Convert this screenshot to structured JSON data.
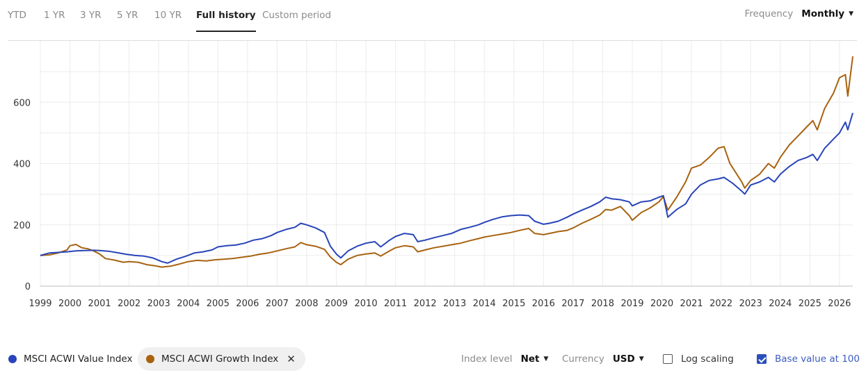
{
  "tabs": [
    {
      "label": "YTD",
      "active": false
    },
    {
      "label": "1 YR",
      "active": false
    },
    {
      "label": "3 YR",
      "active": false
    },
    {
      "label": "5 YR",
      "active": false
    },
    {
      "label": "10 YR",
      "active": false
    },
    {
      "label": "Full history",
      "active": true
    },
    {
      "label": "Custom period",
      "active": false
    }
  ],
  "frequency": {
    "label": "Frequency",
    "value": "Monthly"
  },
  "legend": [
    {
      "name": "MSCI ACWI Value Index",
      "color": "#2844b8"
    },
    {
      "name": "MSCI ACWI Growth Index",
      "color": "#a8620f"
    }
  ],
  "controls": {
    "index_level": {
      "label": "Index level",
      "value": "Net"
    },
    "currency": {
      "label": "Currency",
      "value": "USD"
    },
    "log_scaling": {
      "label": "Log scaling",
      "checked": false
    },
    "base_value": {
      "label": "Base value at 100",
      "checked": true
    }
  },
  "chart_data": {
    "type": "line",
    "title": "",
    "xlabel": "",
    "ylabel": "",
    "x_ticks": [
      "1999",
      "2000",
      "2001",
      "2002",
      "2003",
      "2004",
      "2005",
      "2006",
      "2007",
      "2008",
      "2009",
      "2010",
      "2011",
      "2012",
      "2013",
      "2014",
      "2015",
      "2016",
      "2017",
      "2018",
      "2019",
      "2020",
      "2021",
      "2022",
      "2023",
      "2024",
      "2025",
      "2026"
    ],
    "y_ticks": [
      0,
      200,
      400,
      600
    ],
    "xlim": [
      1999.0,
      2026.45
    ],
    "ylim": [
      0,
      800
    ],
    "grid": true,
    "series": [
      {
        "name": "MSCI ACWI Value Index",
        "color": "#2844b8",
        "points": [
          [
            1999.0,
            100
          ],
          [
            1999.3,
            108
          ],
          [
            1999.6,
            110
          ],
          [
            1999.9,
            112
          ],
          [
            2000.2,
            115
          ],
          [
            2000.5,
            116
          ],
          [
            2000.8,
            117
          ],
          [
            2001.0,
            116
          ],
          [
            2001.3,
            114
          ],
          [
            2001.6,
            109
          ],
          [
            2001.9,
            104
          ],
          [
            2002.2,
            100
          ],
          [
            2002.5,
            98
          ],
          [
            2002.8,
            92
          ],
          [
            2003.1,
            80
          ],
          [
            2003.3,
            75
          ],
          [
            2003.6,
            88
          ],
          [
            2003.9,
            97
          ],
          [
            2004.2,
            108
          ],
          [
            2004.5,
            112
          ],
          [
            2004.8,
            118
          ],
          [
            2005.0,
            128
          ],
          [
            2005.3,
            132
          ],
          [
            2005.6,
            134
          ],
          [
            2005.9,
            140
          ],
          [
            2006.2,
            150
          ],
          [
            2006.5,
            155
          ],
          [
            2006.8,
            165
          ],
          [
            2007.0,
            175
          ],
          [
            2007.3,
            185
          ],
          [
            2007.6,
            192
          ],
          [
            2007.8,
            205
          ],
          [
            2008.0,
            200
          ],
          [
            2008.3,
            190
          ],
          [
            2008.6,
            175
          ],
          [
            2008.8,
            130
          ],
          [
            2009.0,
            105
          ],
          [
            2009.15,
            92
          ],
          [
            2009.4,
            115
          ],
          [
            2009.7,
            130
          ],
          [
            2010.0,
            140
          ],
          [
            2010.3,
            145
          ],
          [
            2010.5,
            128
          ],
          [
            2010.8,
            150
          ],
          [
            2011.0,
            162
          ],
          [
            2011.3,
            172
          ],
          [
            2011.6,
            168
          ],
          [
            2011.75,
            145
          ],
          [
            2012.0,
            150
          ],
          [
            2012.3,
            158
          ],
          [
            2012.6,
            165
          ],
          [
            2012.9,
            172
          ],
          [
            2013.2,
            185
          ],
          [
            2013.5,
            192
          ],
          [
            2013.8,
            200
          ],
          [
            2014.0,
            208
          ],
          [
            2014.3,
            218
          ],
          [
            2014.6,
            226
          ],
          [
            2014.9,
            230
          ],
          [
            2015.2,
            232
          ],
          [
            2015.5,
            230
          ],
          [
            2015.7,
            212
          ],
          [
            2016.0,
            202
          ],
          [
            2016.2,
            205
          ],
          [
            2016.5,
            212
          ],
          [
            2016.8,
            225
          ],
          [
            2017.0,
            235
          ],
          [
            2017.3,
            248
          ],
          [
            2017.6,
            260
          ],
          [
            2017.9,
            275
          ],
          [
            2018.1,
            290
          ],
          [
            2018.3,
            285
          ],
          [
            2018.6,
            282
          ],
          [
            2018.9,
            275
          ],
          [
            2019.0,
            262
          ],
          [
            2019.3,
            275
          ],
          [
            2019.6,
            278
          ],
          [
            2019.9,
            290
          ],
          [
            2020.05,
            295
          ],
          [
            2020.2,
            225
          ],
          [
            2020.5,
            250
          ],
          [
            2020.8,
            268
          ],
          [
            2021.0,
            300
          ],
          [
            2021.3,
            330
          ],
          [
            2021.6,
            345
          ],
          [
            2021.9,
            350
          ],
          [
            2022.1,
            355
          ],
          [
            2022.4,
            335
          ],
          [
            2022.7,
            310
          ],
          [
            2022.8,
            300
          ],
          [
            2023.0,
            330
          ],
          [
            2023.3,
            340
          ],
          [
            2023.6,
            355
          ],
          [
            2023.8,
            340
          ],
          [
            2024.0,
            365
          ],
          [
            2024.3,
            390
          ],
          [
            2024.6,
            410
          ],
          [
            2024.9,
            420
          ],
          [
            2025.1,
            430
          ],
          [
            2025.25,
            410
          ],
          [
            2025.5,
            450
          ],
          [
            2025.8,
            480
          ],
          [
            2026.0,
            500
          ],
          [
            2026.2,
            535
          ],
          [
            2026.28,
            510
          ],
          [
            2026.45,
            565
          ]
        ]
      },
      {
        "name": "MSCI ACWI Growth Index",
        "color": "#a8620f",
        "points": [
          [
            1999.0,
            100
          ],
          [
            1999.3,
            102
          ],
          [
            1999.6,
            108
          ],
          [
            1999.9,
            118
          ],
          [
            2000.0,
            132
          ],
          [
            2000.2,
            136
          ],
          [
            2000.4,
            125
          ],
          [
            2000.6,
            122
          ],
          [
            2000.8,
            115
          ],
          [
            2001.0,
            105
          ],
          [
            2001.2,
            90
          ],
          [
            2001.5,
            85
          ],
          [
            2001.8,
            78
          ],
          [
            2002.0,
            80
          ],
          [
            2002.3,
            78
          ],
          [
            2002.6,
            70
          ],
          [
            2002.9,
            66
          ],
          [
            2003.1,
            62
          ],
          [
            2003.4,
            65
          ],
          [
            2003.7,
            72
          ],
          [
            2004.0,
            80
          ],
          [
            2004.3,
            84
          ],
          [
            2004.6,
            82
          ],
          [
            2004.9,
            86
          ],
          [
            2005.2,
            88
          ],
          [
            2005.5,
            90
          ],
          [
            2005.8,
            94
          ],
          [
            2006.1,
            98
          ],
          [
            2006.4,
            104
          ],
          [
            2006.7,
            108
          ],
          [
            2007.0,
            115
          ],
          [
            2007.3,
            122
          ],
          [
            2007.6,
            128
          ],
          [
            2007.8,
            142
          ],
          [
            2008.0,
            135
          ],
          [
            2008.3,
            130
          ],
          [
            2008.6,
            120
          ],
          [
            2008.8,
            95
          ],
          [
            2009.0,
            78
          ],
          [
            2009.15,
            70
          ],
          [
            2009.4,
            88
          ],
          [
            2009.7,
            100
          ],
          [
            2010.0,
            105
          ],
          [
            2010.3,
            108
          ],
          [
            2010.5,
            98
          ],
          [
            2010.8,
            115
          ],
          [
            2011.0,
            125
          ],
          [
            2011.3,
            132
          ],
          [
            2011.6,
            128
          ],
          [
            2011.75,
            112
          ],
          [
            2012.0,
            118
          ],
          [
            2012.3,
            125
          ],
          [
            2012.6,
            130
          ],
          [
            2012.9,
            135
          ],
          [
            2013.2,
            140
          ],
          [
            2013.5,
            148
          ],
          [
            2013.8,
            155
          ],
          [
            2014.0,
            160
          ],
          [
            2014.3,
            165
          ],
          [
            2014.6,
            170
          ],
          [
            2014.9,
            175
          ],
          [
            2015.2,
            182
          ],
          [
            2015.5,
            188
          ],
          [
            2015.7,
            172
          ],
          [
            2016.0,
            168
          ],
          [
            2016.2,
            172
          ],
          [
            2016.5,
            178
          ],
          [
            2016.8,
            182
          ],
          [
            2017.0,
            190
          ],
          [
            2017.3,
            205
          ],
          [
            2017.6,
            218
          ],
          [
            2017.9,
            232
          ],
          [
            2018.1,
            250
          ],
          [
            2018.3,
            248
          ],
          [
            2018.6,
            260
          ],
          [
            2018.9,
            230
          ],
          [
            2019.0,
            215
          ],
          [
            2019.3,
            240
          ],
          [
            2019.6,
            255
          ],
          [
            2019.9,
            275
          ],
          [
            2020.05,
            292
          ],
          [
            2020.2,
            248
          ],
          [
            2020.5,
            290
          ],
          [
            2020.8,
            340
          ],
          [
            2021.0,
            385
          ],
          [
            2021.3,
            395
          ],
          [
            2021.6,
            420
          ],
          [
            2021.9,
            450
          ],
          [
            2022.1,
            455
          ],
          [
            2022.3,
            400
          ],
          [
            2022.5,
            370
          ],
          [
            2022.7,
            340
          ],
          [
            2022.8,
            320
          ],
          [
            2023.0,
            345
          ],
          [
            2023.3,
            365
          ],
          [
            2023.6,
            400
          ],
          [
            2023.8,
            385
          ],
          [
            2024.0,
            420
          ],
          [
            2024.3,
            460
          ],
          [
            2024.6,
            490
          ],
          [
            2024.9,
            520
          ],
          [
            2025.1,
            540
          ],
          [
            2025.25,
            510
          ],
          [
            2025.5,
            580
          ],
          [
            2025.8,
            630
          ],
          [
            2026.0,
            680
          ],
          [
            2026.2,
            690
          ],
          [
            2026.28,
            620
          ],
          [
            2026.45,
            750
          ]
        ]
      }
    ]
  }
}
